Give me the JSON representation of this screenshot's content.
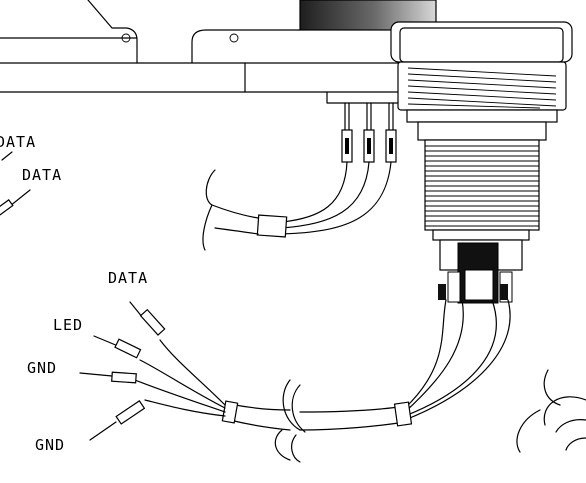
{
  "labels": {
    "top_data_1": "DATA",
    "top_data_2": "DATA",
    "data": "DATA",
    "led": "LED",
    "gnd_1": "GND",
    "gnd_2": "GND"
  },
  "colors": {
    "line": "#000000",
    "background": "#ffffff",
    "knob_dark": "#2a2a2a",
    "knob_light": "#d0d0d0"
  }
}
